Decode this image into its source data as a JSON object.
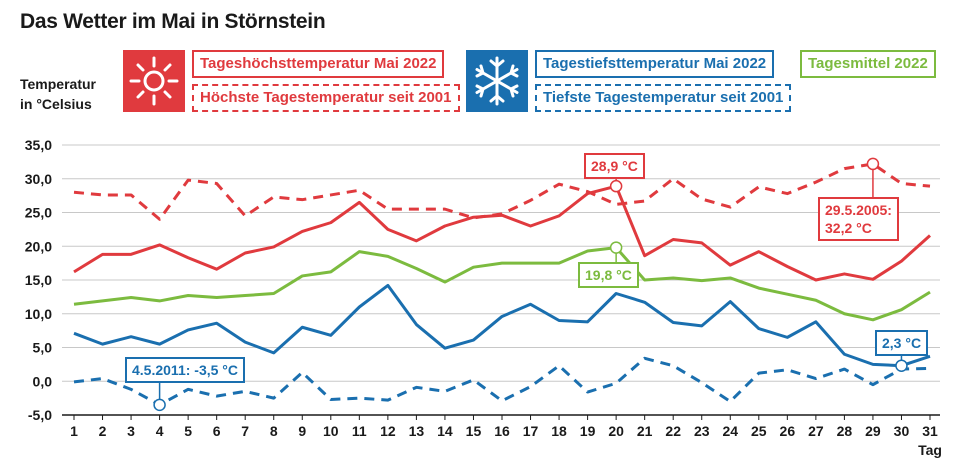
{
  "title": "Das Wetter im Mai in Störnstein",
  "y_axis_label_line1": "Temperatur",
  "y_axis_label_line2": "in °Celsius",
  "legend": {
    "max_2022": "Tageshöchsttemperatur Mai 2022",
    "max_record": "Höchste Tagestemperatur seit 2001",
    "min_2022": "Tagestiefsttemperatur Mai 2022",
    "min_record": "Tiefste Tagestemperatur seit 2001",
    "mean_2022": "Tagesmittel 2022"
  },
  "annotations": {
    "max_peak": "28,9 °C",
    "record_high_line1": "29.5.2005:",
    "record_high_line2": "32,2 °C",
    "mean_peak": "19,8 °C",
    "record_low": "4.5.2011: -3,5 °C",
    "min_end": "2,3 °C"
  },
  "colors": {
    "red": "#e03a3e",
    "blue": "#1a6faf",
    "green": "#7cbb3f",
    "grid": "#c8c8c8"
  },
  "icons": [
    "sun-icon",
    "snowflake-icon"
  ],
  "chart_data": {
    "type": "line",
    "x_label": "Tag",
    "x": [
      1,
      2,
      3,
      4,
      5,
      6,
      7,
      8,
      9,
      10,
      11,
      12,
      13,
      14,
      15,
      16,
      17,
      18,
      19,
      20,
      21,
      22,
      23,
      24,
      25,
      26,
      27,
      28,
      29,
      30,
      31
    ],
    "ylim": [
      -5,
      35
    ],
    "yticks": [
      "-5,0",
      "0,0",
      "5,0",
      "10,0",
      "15,0",
      "20,0",
      "25,0",
      "30,0",
      "35,0"
    ],
    "ytick_values": [
      -5,
      0,
      5,
      10,
      15,
      20,
      25,
      30,
      35
    ],
    "grid": true,
    "series": [
      {
        "name": "Tageshöchsttemperatur Mai 2022",
        "color": "#e03a3e",
        "dashed": false,
        "values": [
          16.2,
          18.8,
          18.8,
          20.2,
          18.3,
          16.6,
          19.0,
          19.9,
          22.2,
          23.5,
          26.5,
          22.5,
          20.8,
          23.0,
          24.3,
          24.6,
          23.0,
          24.5,
          27.8,
          28.9,
          18.6,
          21.0,
          20.5,
          17.2,
          19.2,
          17.0,
          15.0,
          15.9,
          15.1,
          17.8,
          21.6
        ]
      },
      {
        "name": "Höchste Tagestemperatur seit 2001",
        "color": "#e03a3e",
        "dashed": true,
        "values": [
          28.0,
          27.6,
          27.6,
          24.0,
          29.8,
          29.3,
          24.5,
          27.3,
          26.9,
          27.6,
          28.3,
          25.5,
          25.5,
          25.5,
          24.2,
          24.8,
          26.8,
          29.2,
          28.1,
          26.2,
          26.7,
          30.0,
          27.0,
          25.8,
          28.8,
          27.8,
          29.5,
          31.5,
          32.2,
          29.3,
          28.9
        ]
      },
      {
        "name": "Tagesmittel 2022",
        "color": "#7cbb3f",
        "dashed": false,
        "values": [
          11.4,
          11.9,
          12.4,
          11.9,
          12.7,
          12.4,
          12.7,
          13.0,
          15.6,
          16.2,
          19.2,
          18.5,
          16.7,
          14.7,
          16.9,
          17.5,
          17.5,
          17.5,
          19.3,
          19.8,
          15.0,
          15.3,
          14.9,
          15.3,
          13.8,
          12.9,
          12.0,
          10.0,
          9.1,
          10.6,
          13.2
        ]
      },
      {
        "name": "Tagestiefsttemperatur Mai 2022",
        "color": "#1a6faf",
        "dashed": false,
        "values": [
          7.1,
          5.5,
          6.6,
          5.5,
          7.6,
          8.6,
          5.8,
          4.2,
          8.0,
          6.8,
          11.0,
          14.2,
          8.4,
          4.9,
          6.1,
          9.6,
          11.4,
          9.0,
          8.8,
          13.0,
          11.7,
          8.7,
          8.2,
          11.8,
          7.8,
          6.5,
          8.8,
          4.0,
          2.5,
          2.3,
          3.7
        ]
      },
      {
        "name": "Tiefste Tagestemperatur seit 2001",
        "color": "#1a6faf",
        "dashed": true,
        "values": [
          -0.1,
          0.4,
          -1.2,
          -3.5,
          -1.2,
          -2.2,
          -1.5,
          -2.5,
          1.3,
          -2.7,
          -2.5,
          -2.8,
          -0.9,
          -1.5,
          0.2,
          -2.9,
          -0.8,
          2.3,
          -1.6,
          -0.3,
          3.4,
          2.3,
          -0.2,
          -3.0,
          1.2,
          1.7,
          0.4,
          1.8,
          -0.5,
          1.8,
          1.9
        ]
      }
    ]
  }
}
